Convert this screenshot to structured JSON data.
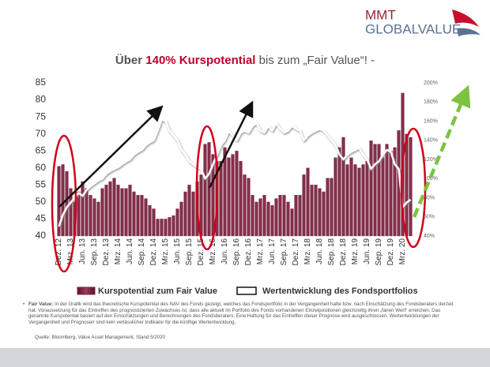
{
  "logo": {
    "line1": "MMT",
    "line2": "GLOBALVALUE"
  },
  "chart_data": {
    "type": "bar_line",
    "title_parts": [
      "Über ",
      "140% Kurspotential",
      " bis zum „Fair Value“! -"
    ],
    "categories": [
      "Dez. 12",
      null,
      null,
      "Mrz. 13",
      null,
      null,
      "Jun. 13",
      null,
      null,
      "Sep. 13",
      null,
      null,
      "Dez. 13",
      null,
      null,
      "Mrz. 14",
      null,
      null,
      "Jun. 14",
      null,
      null,
      "Sep. 14",
      null,
      null,
      "Dez. 14",
      null,
      null,
      "Mrz. 15",
      null,
      null,
      "Jun. 15",
      null,
      null,
      "Sep. 15",
      null,
      null,
      "Dez. 15",
      null,
      null,
      "Mrz. 16",
      null,
      null,
      "Jun. 16",
      null,
      null,
      "Sep. 16",
      null,
      null,
      "Dez. 16",
      null,
      null,
      "Mrz. 17",
      null,
      null,
      "Jun. 17",
      null,
      null,
      "Sep. 17",
      null,
      null,
      "Dez. 17",
      null,
      null,
      "Mrz. 18",
      null,
      null,
      "Jun. 18",
      null,
      null,
      "Sep. 18",
      null,
      null,
      "Dez. 18",
      null,
      null,
      "Mrz. 19",
      null,
      null,
      "Jun. 19",
      null,
      null,
      "Sep. 19",
      null,
      null,
      "Dez. 19",
      null,
      null,
      "Mrz. 20",
      null,
      null
    ],
    "series": [
      {
        "name": "Kurspotential zum Fair Value",
        "color": "#7a1f3d",
        "axis": "y",
        "values": [
          60.5,
          61,
          59,
          54,
          50,
          53,
          56,
          54,
          52,
          51,
          50,
          54,
          55,
          56,
          57,
          55,
          54,
          54,
          55,
          53,
          52,
          52,
          51,
          49,
          48,
          45,
          45,
          45,
          45.5,
          46,
          48,
          50,
          53,
          55,
          53,
          56,
          58,
          67,
          67.5,
          64,
          62,
          62,
          66,
          63,
          64,
          65,
          62,
          58,
          57,
          52,
          50,
          51,
          52,
          50,
          49,
          51,
          52,
          52,
          50,
          48,
          52,
          52,
          58,
          60,
          55,
          55,
          54,
          53,
          57,
          57,
          63,
          66,
          69,
          61,
          63,
          61,
          60,
          61,
          62,
          68,
          67,
          67,
          63,
          67,
          65,
          66,
          71,
          82,
          70,
          69
        ]
      },
      {
        "name": "Wertentwicklung des Fondsportfolios",
        "color": "#ffffff",
        "axis": "y2",
        "values": [
          50,
          62,
          70,
          75,
          80,
          85,
          82,
          88,
          92,
          95,
          98,
          100,
          105,
          108,
          110,
          112,
          115,
          118,
          120,
          125,
          128,
          130,
          135,
          138,
          140,
          150,
          162,
          160,
          150,
          145,
          140,
          130,
          125,
          118,
          115,
          112,
          110,
          100,
          105,
          115,
          125,
          135,
          140,
          150,
          145,
          140,
          148,
          150,
          148,
          155,
          158,
          150,
          148,
          155,
          150,
          158,
          152,
          148,
          150,
          155,
          152,
          150,
          140,
          145,
          148,
          150,
          152,
          150,
          145,
          140,
          135,
          125,
          120,
          125,
          128,
          130,
          132,
          125,
          120,
          110,
          115,
          118,
          125,
          130,
          128,
          115,
          110,
          70,
          75,
          78
        ]
      }
    ],
    "ylim": [
      40,
      85
    ],
    "yticks": [
      40,
      45,
      50,
      55,
      60,
      65,
      70,
      75,
      80,
      85
    ],
    "y2lim": [
      40,
      200
    ],
    "y2ticks": [
      {
        "value": 40,
        "label": "40%"
      },
      {
        "value": 60,
        "label": "60%"
      },
      {
        "value": 80,
        "label": "80%"
      },
      {
        "value": 100,
        "label": "100%"
      },
      {
        "value": 120,
        "label": "120%"
      },
      {
        "value": 140,
        "label": "140%"
      },
      {
        "value": 160,
        "label": "160%"
      },
      {
        "value": 180,
        "label": "180%"
      },
      {
        "value": 200,
        "label": "200%"
      }
    ],
    "grid": false
  },
  "footnote": {
    "label": "Fair Value:",
    "text": "In der Grafik wird das theoretische Kurspotential des NAV des Fonds gezeigt, welches das Fondsportfolio in der Vergangenheit hatte bzw. nach Einschätzung des Fondsberaters derzeit hat. Voraussetzung für das Eintreffen des prognostizierten Zuwachses ist, dass alle aktuell im Portfolio des Fonds vorhandenen Einzelpositionen gleichzeitig ihren „fairen Wert“ erreichen. Das genannte Kurspotential basiert auf den Einschätzungen und Berechnungen des Fondsberaters. Eine Haftung für das Eintreffen dieser Prognose wird ausgeschlossen. Wertentwicklungen der Vergangenheit und Prognosen sind kein verlässlicher Indikator für die künftige Wertentwicklung.",
    "source": "Quelle: Bloomberg, Value Asset Management, Stand 5/2020"
  }
}
